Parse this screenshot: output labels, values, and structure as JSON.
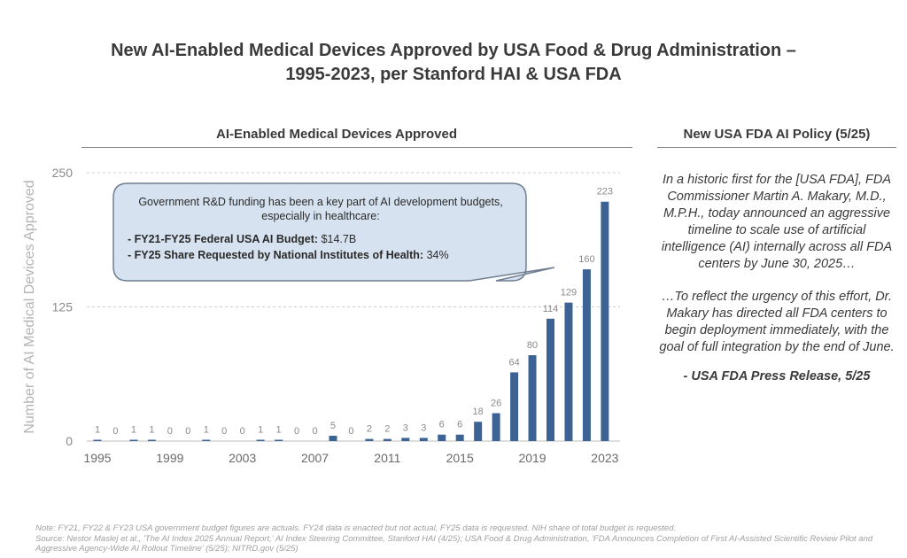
{
  "title_line1": "New AI-Enabled Medical Devices Approved by USA Food & Drug Administration –",
  "title_line2": "1995-2023, per Stanford HAI & USA FDA",
  "left_panel_title": "AI-Enabled Medical Devices Approved",
  "right_panel_title": "New USA FDA AI Policy (5/25)",
  "callout": {
    "intro": "Government R&D funding has been a key part of AI development budgets, especially in healthcare:",
    "bullet1_label": "- FY21-FY25 Federal USA AI Budget:",
    "bullet1_value": " $14.7B",
    "bullet2_label": "- FY25 Share Requested by National Institutes of Health:",
    "bullet2_value": " 34%"
  },
  "quote": {
    "p1": "In a historic first for the [USA FDA], FDA Commissioner Martin A. Makary, M.D., M.P.H., today announced an aggressive timeline to scale use of artificial intelligence (AI) internally across all FDA centers by June 30, 2025…",
    "p2": "…To reflect the urgency of this effort, Dr. Makary has directed all FDA centers to begin deployment immediately, with the goal of full integration by the end of June.",
    "source": "- USA FDA Press Release, 5/25"
  },
  "footnote": {
    "line1": "Note: FY21, FY22 & FY23 USA government budget figures are actuals. FY24 data is enacted but not actual, FY25 data is requested. NIH share of total budget is requested.",
    "line2": "Source: Nestor Maslej et al., 'The AI Index 2025 Annual Report,' AI Index Steering Committee, Stanford HAI (4/25); USA Food & Drug Administration, 'FDA Announces Completion of First AI-Assisted Scientific Review Pilot and Aggressive Agency-Wide AI Rollout Timeline' (5/25); NITRD.gov (5/25)"
  },
  "colors": {
    "bar": "#3d6394",
    "callout_fill": "#d6e2ef",
    "callout_stroke": "#6f7f93",
    "grid": "#cfcfcf"
  },
  "chart_data": {
    "type": "bar",
    "title": "AI-Enabled Medical Devices Approved",
    "xlabel": "",
    "ylabel": "Number of AI Medical Devices Approved",
    "ylim": [
      0,
      250
    ],
    "yticks": [
      0,
      125,
      250
    ],
    "grid": true,
    "categories": [
      "1995",
      "1996",
      "1997",
      "1998",
      "1999",
      "2000",
      "2001",
      "2002",
      "2003",
      "2004",
      "2005",
      "2006",
      "2007",
      "2008",
      "2009",
      "2010",
      "2011",
      "2012",
      "2013",
      "2014",
      "2015",
      "2016",
      "2017",
      "2018",
      "2019",
      "2020",
      "2021",
      "2022",
      "2023"
    ],
    "xtick_labels": [
      "1995",
      "1999",
      "2003",
      "2007",
      "2011",
      "2015",
      "2019",
      "2023"
    ],
    "values": [
      1,
      0,
      1,
      1,
      0,
      0,
      1,
      0,
      0,
      1,
      1,
      0,
      0,
      5,
      0,
      2,
      2,
      3,
      3,
      6,
      6,
      18,
      26,
      64,
      80,
      114,
      129,
      160,
      223
    ]
  }
}
